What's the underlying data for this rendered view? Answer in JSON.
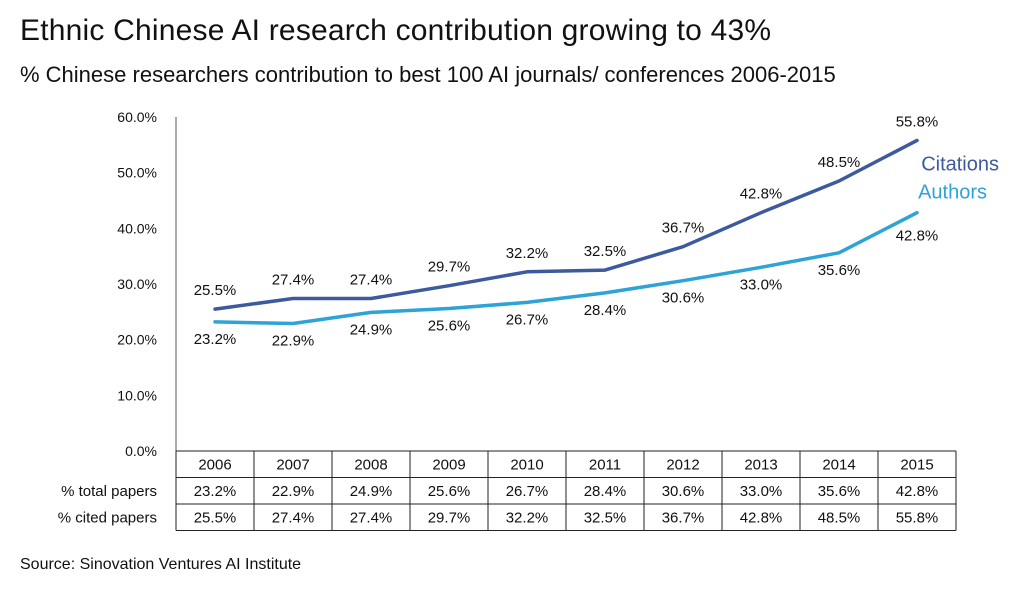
{
  "title": "Ethnic Chinese AI research contribution growing to 43%",
  "subtitle": "% Chinese researchers contribution to best 100 AI journals/ conferences 2006-2015",
  "source": "Source: Sinovation Ventures AI Institute",
  "chart_data": {
    "type": "line",
    "x": [
      "2006",
      "2007",
      "2008",
      "2009",
      "2010",
      "2011",
      "2012",
      "2013",
      "2014",
      "2015"
    ],
    "series": [
      {
        "name": "Citations",
        "color": "#3d5a9e",
        "values": [
          25.5,
          27.4,
          27.4,
          29.7,
          32.2,
          32.5,
          36.7,
          42.8,
          48.5,
          55.8
        ],
        "labels": [
          "25.5%",
          "27.4%",
          "27.4%",
          "29.7%",
          "32.2%",
          "32.5%",
          "36.7%",
          "42.8%",
          "48.5%",
          "55.8%"
        ]
      },
      {
        "name": "Authors",
        "color": "#2ea3d8",
        "values": [
          23.2,
          22.9,
          24.9,
          25.6,
          26.7,
          28.4,
          30.6,
          33.0,
          35.6,
          42.8
        ],
        "labels": [
          "23.2%",
          "22.9%",
          "24.9%",
          "25.6%",
          "26.7%",
          "28.4%",
          "30.6%",
          "33.0%",
          "35.6%",
          "42.8%"
        ]
      }
    ],
    "ylim": [
      0,
      60
    ],
    "yticks": [
      "0.0%",
      "10.0%",
      "20.0%",
      "30.0%",
      "40.0%",
      "50.0%",
      "60.0%"
    ],
    "xlabel": "",
    "ylabel": "",
    "grid": false,
    "table": {
      "rows": [
        {
          "header": "% total papers",
          "cells": [
            "23.2%",
            "22.9%",
            "24.9%",
            "25.6%",
            "26.7%",
            "28.4%",
            "30.6%",
            "33.0%",
            "35.6%",
            "42.8%"
          ]
        },
        {
          "header": "% cited papers",
          "cells": [
            "25.5%",
            "27.4%",
            "27.4%",
            "29.7%",
            "32.2%",
            "32.5%",
            "36.7%",
            "42.8%",
            "48.5%",
            "55.8%"
          ]
        }
      ]
    }
  }
}
